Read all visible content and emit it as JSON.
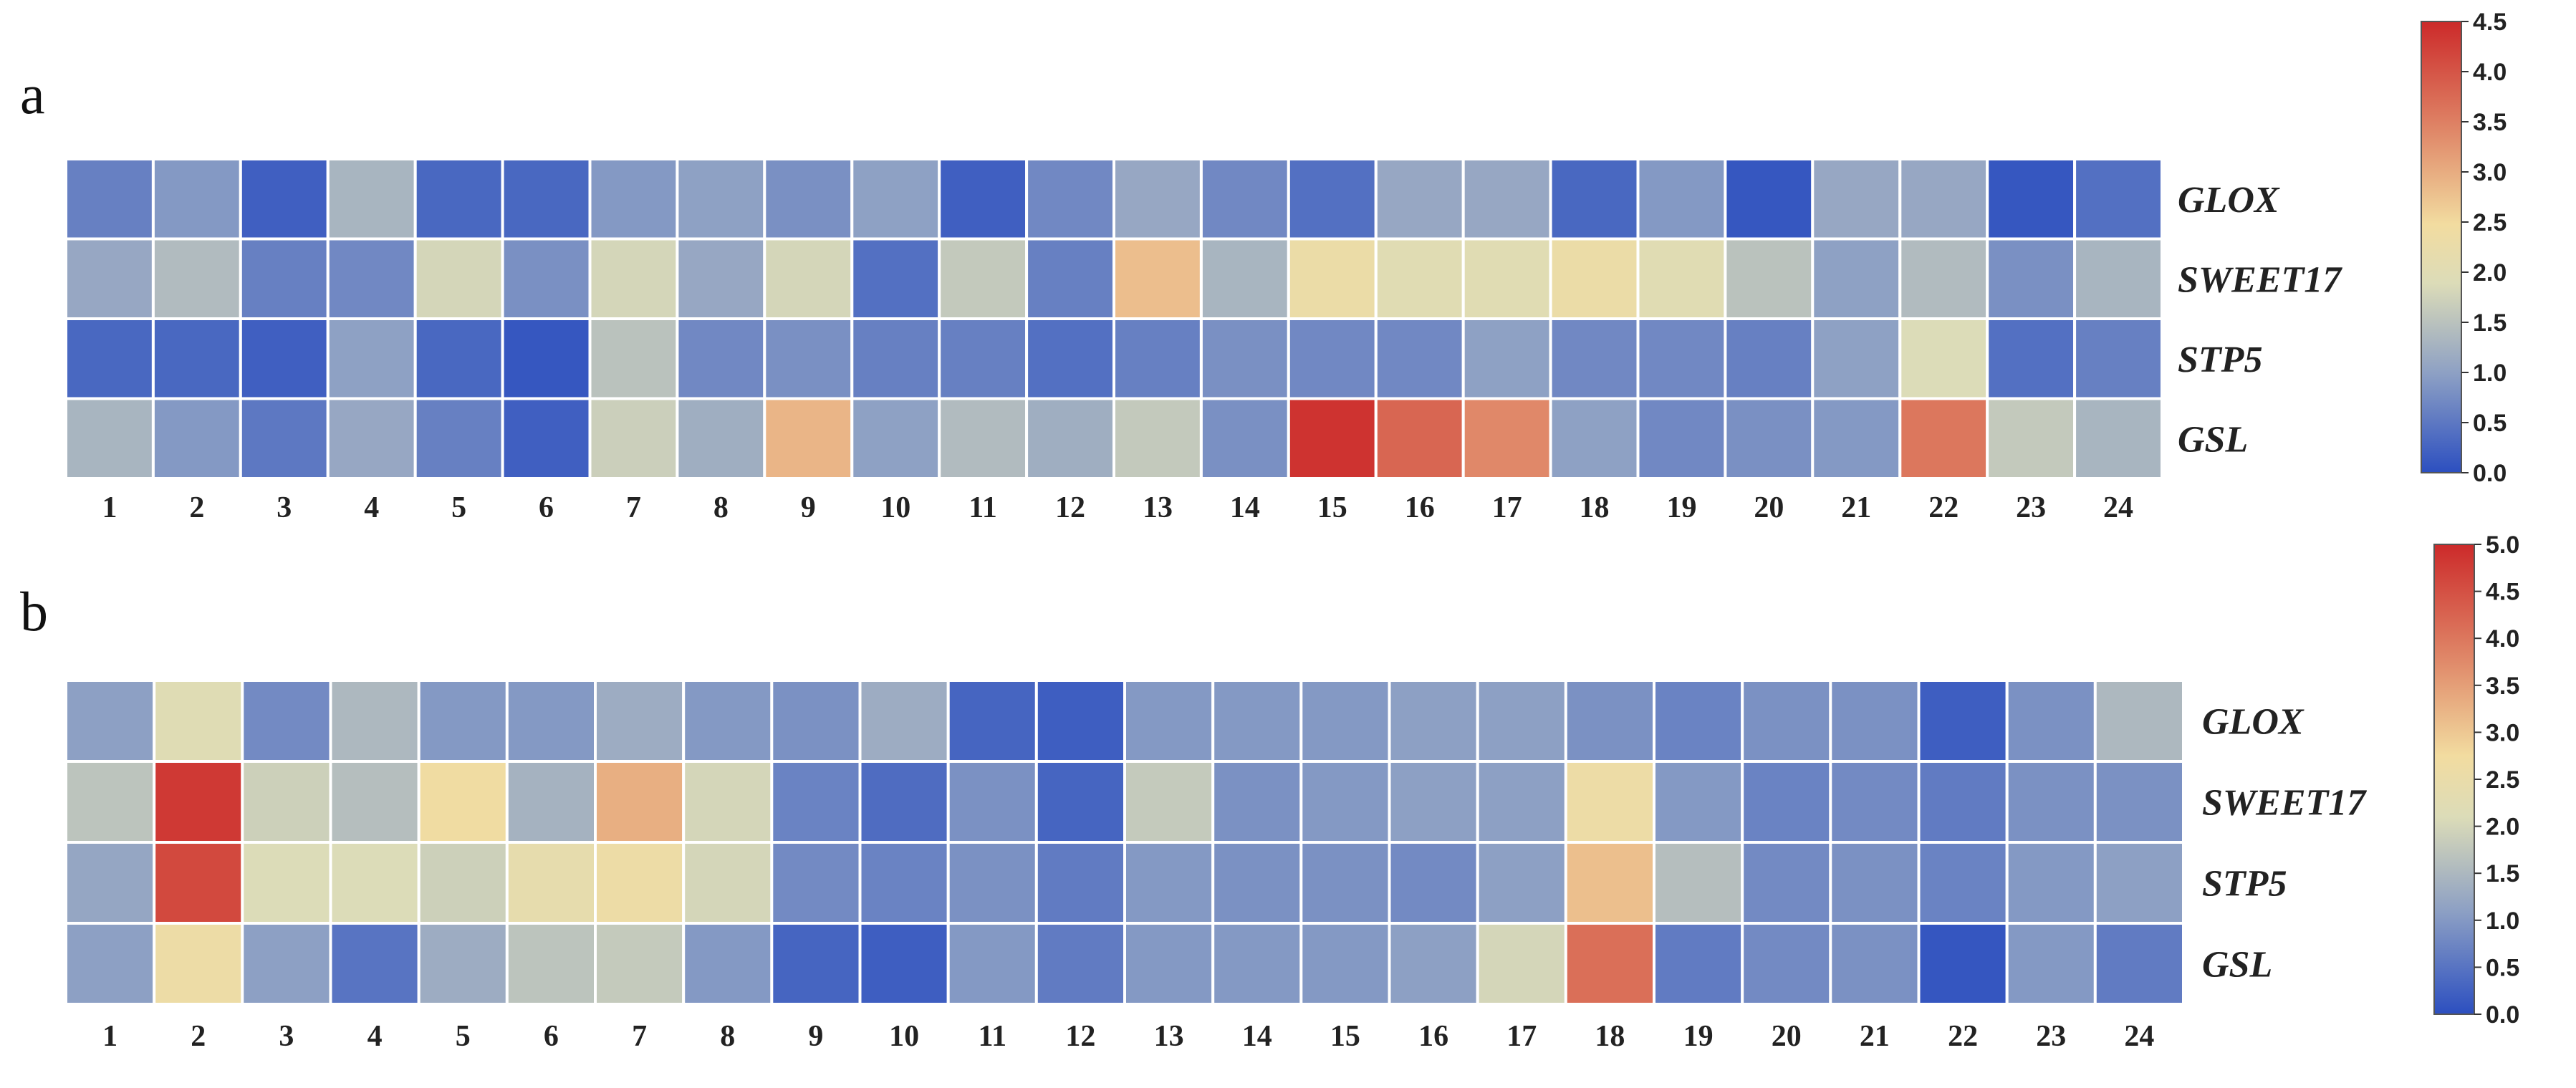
{
  "chart_data": [
    {
      "type": "heatmap",
      "panel": "a",
      "rows": [
        "GLOX",
        "SWEET17",
        "STP5",
        "GSL"
      ],
      "columns": [
        "1",
        "2",
        "3",
        "4",
        "5",
        "6",
        "7",
        "8",
        "9",
        "10",
        "11",
        "12",
        "13",
        "14",
        "15",
        "16",
        "17",
        "18",
        "19",
        "20",
        "21",
        "22",
        "23",
        "24"
      ],
      "values": [
        [
          0.6,
          0.9,
          0.2,
          1.3,
          0.3,
          0.3,
          0.9,
          1.0,
          0.8,
          1.0,
          0.2,
          0.7,
          1.1,
          0.7,
          0.4,
          1.1,
          1.1,
          0.3,
          0.9,
          0.1,
          1.1,
          1.1,
          0.1,
          0.4
        ],
        [
          1.1,
          1.4,
          0.6,
          0.7,
          1.8,
          0.8,
          1.8,
          1.1,
          1.8,
          0.4,
          1.6,
          0.6,
          2.8,
          1.3,
          2.3,
          2.0,
          2.0,
          2.3,
          2.0,
          1.5,
          1.0,
          1.4,
          0.8,
          1.3
        ],
        [
          0.3,
          0.3,
          0.2,
          1.0,
          0.3,
          0.1,
          1.5,
          0.7,
          0.8,
          0.6,
          0.6,
          0.4,
          0.6,
          0.8,
          0.7,
          0.7,
          1.0,
          0.7,
          0.7,
          0.6,
          1.0,
          1.9,
          0.4,
          0.6
        ],
        [
          1.3,
          0.9,
          0.5,
          1.1,
          0.6,
          0.2,
          1.7,
          1.2,
          2.9,
          1.0,
          1.4,
          1.2,
          1.6,
          0.8,
          4.4,
          3.8,
          3.4,
          1.0,
          0.7,
          0.8,
          0.9,
          3.6,
          1.6,
          1.3
        ]
      ],
      "colorbar": {
        "min": 0.0,
        "max": 4.5,
        "ticks": [
          "0.0",
          "0.5",
          "1.0",
          "1.5",
          "2.0",
          "2.5",
          "3.0",
          "3.5",
          "4.0",
          "4.5"
        ]
      }
    },
    {
      "type": "heatmap",
      "panel": "b",
      "rows": [
        "GLOX",
        "SWEET17",
        "STP5",
        "GSL"
      ],
      "columns": [
        "1",
        "2",
        "3",
        "4",
        "5",
        "6",
        "7",
        "8",
        "9",
        "10",
        "11",
        "12",
        "13",
        "14",
        "15",
        "16",
        "17",
        "18",
        "19",
        "20",
        "21",
        "22",
        "23",
        "24"
      ],
      "values": [
        [
          1.1,
          2.2,
          0.8,
          1.5,
          1.0,
          1.0,
          1.3,
          1.0,
          0.9,
          1.3,
          0.3,
          0.2,
          1.0,
          1.0,
          1.0,
          1.1,
          1.1,
          0.9,
          0.7,
          0.9,
          0.9,
          0.2,
          0.9,
          1.5
        ],
        [
          1.7,
          4.8,
          1.9,
          1.6,
          2.7,
          1.4,
          3.3,
          2.0,
          0.7,
          0.4,
          0.9,
          0.3,
          1.8,
          0.9,
          1.0,
          1.1,
          1.1,
          2.6,
          1.0,
          0.7,
          0.8,
          0.6,
          0.9,
          0.9
        ],
        [
          1.2,
          4.6,
          2.1,
          2.1,
          1.9,
          2.4,
          2.6,
          2.0,
          0.8,
          0.7,
          0.9,
          0.6,
          1.0,
          0.9,
          0.9,
          0.8,
          1.1,
          3.1,
          1.6,
          0.8,
          0.9,
          0.7,
          1.0,
          1.1
        ],
        [
          1.1,
          2.6,
          1.1,
          0.5,
          1.3,
          1.7,
          1.8,
          1.0,
          0.3,
          0.2,
          1.0,
          0.6,
          1.0,
          1.0,
          1.0,
          1.1,
          2.0,
          4.1,
          0.6,
          0.8,
          0.9,
          0.1,
          1.0,
          0.6
        ]
      ],
      "colorbar": {
        "min": 0.0,
        "max": 5.0,
        "ticks": [
          "0.0",
          "0.5",
          "1.0",
          "1.5",
          "2.0",
          "2.5",
          "3.0",
          "3.5",
          "4.0",
          "4.5",
          "5.0"
        ]
      }
    }
  ],
  "colors": {
    "low": "#2c4fc0",
    "mid_low": "#8da0c4",
    "mid": "#dcdcb8",
    "mid_high": "#f2dca0",
    "high_mid": "#e08a6a",
    "high": "#cc2a2a",
    "cell_border": "#ffffff"
  }
}
